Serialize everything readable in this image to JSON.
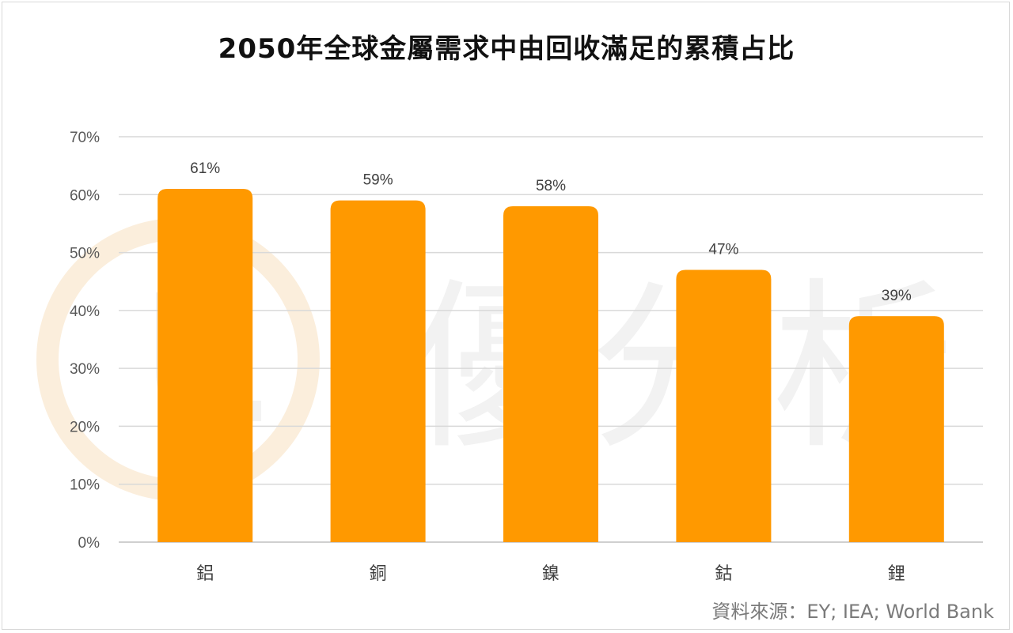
{
  "chart_data": {
    "type": "bar",
    "title": "2050年全球金屬需求中由回收滿足的累積占比",
    "categories": [
      "鋁",
      "銅",
      "鎳",
      "鈷",
      "鋰"
    ],
    "values": [
      61,
      59,
      58,
      47,
      39
    ],
    "data_labels": [
      "61%",
      "59%",
      "58%",
      "47%",
      "39%"
    ],
    "ylim": [
      0,
      70
    ],
    "yticks": [
      "0%",
      "10%",
      "20%",
      "30%",
      "40%",
      "50%",
      "60%",
      "70%"
    ],
    "xlabel": "",
    "ylabel": "",
    "grid": true,
    "bar_color": "#FF9900"
  },
  "source_note": "資料來源：EY; IEA; World Bank",
  "watermark_text": "優分析"
}
